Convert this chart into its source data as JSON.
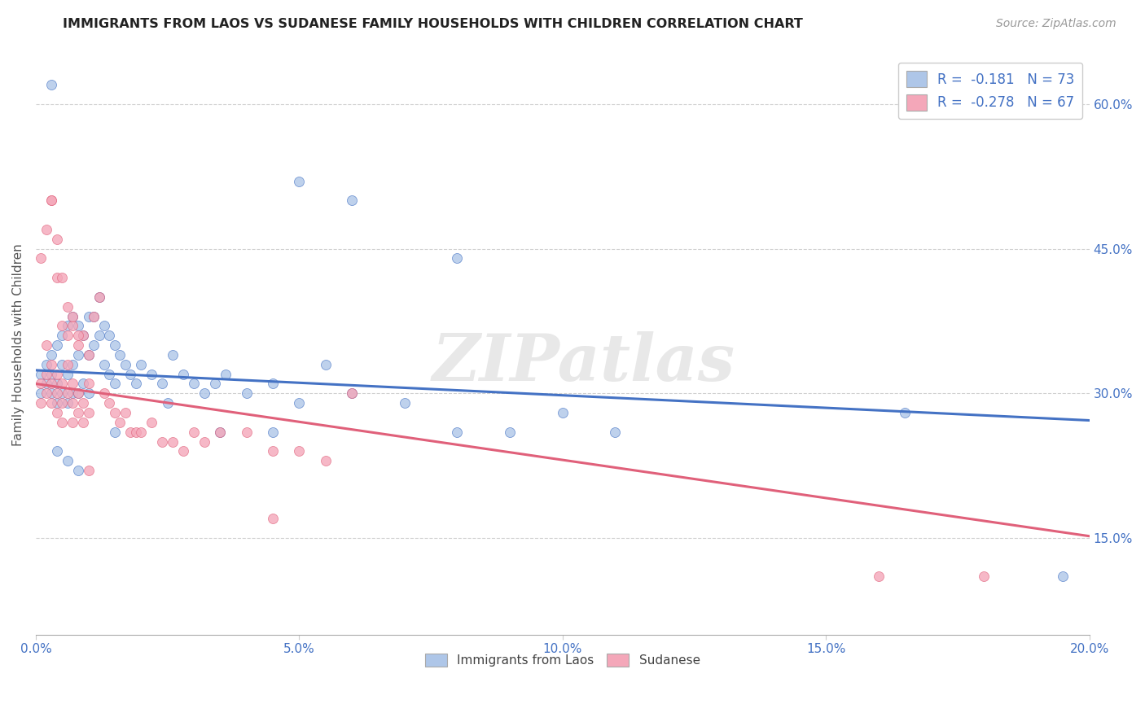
{
  "title": "IMMIGRANTS FROM LAOS VS SUDANESE FAMILY HOUSEHOLDS WITH CHILDREN CORRELATION CHART",
  "source": "Source: ZipAtlas.com",
  "ylabel": "Family Households with Children",
  "legend_label1": "Immigrants from Laos",
  "legend_label2": "Sudanese",
  "legend_r1": "R =  -0.181",
  "legend_n1": "N = 73",
  "legend_r2": "R =  -0.278",
  "legend_n2": "N = 67",
  "xlim": [
    0.0,
    0.2
  ],
  "ylim": [
    0.05,
    0.65
  ],
  "xticks": [
    0.0,
    0.05,
    0.1,
    0.15,
    0.2
  ],
  "yticks": [
    0.15,
    0.3,
    0.45,
    0.6
  ],
  "xtick_labels": [
    "0.0%",
    "5.0%",
    "10.0%",
    "15.0%",
    "20.0%"
  ],
  "ytick_labels": [
    "15.0%",
    "30.0%",
    "45.0%",
    "60.0%"
  ],
  "color_blue": "#aec6e8",
  "color_pink": "#f4a7b9",
  "line_blue": "#4472c4",
  "line_pink": "#e0607a",
  "watermark": "ZIPatlas",
  "blue_line": [
    [
      0.0,
      0.324
    ],
    [
      0.2,
      0.272
    ]
  ],
  "pink_line": [
    [
      0.0,
      0.31
    ],
    [
      0.2,
      0.152
    ]
  ],
  "blue_x": [
    0.001,
    0.001,
    0.002,
    0.002,
    0.003,
    0.003,
    0.003,
    0.004,
    0.004,
    0.004,
    0.005,
    0.005,
    0.005,
    0.006,
    0.006,
    0.006,
    0.007,
    0.007,
    0.007,
    0.008,
    0.008,
    0.008,
    0.009,
    0.009,
    0.01,
    0.01,
    0.01,
    0.011,
    0.011,
    0.012,
    0.012,
    0.013,
    0.013,
    0.014,
    0.014,
    0.015,
    0.015,
    0.016,
    0.017,
    0.018,
    0.019,
    0.02,
    0.022,
    0.024,
    0.026,
    0.028,
    0.03,
    0.032,
    0.034,
    0.036,
    0.04,
    0.045,
    0.05,
    0.055,
    0.06,
    0.07,
    0.08,
    0.09,
    0.1,
    0.11,
    0.003,
    0.05,
    0.08,
    0.06,
    0.165,
    0.195,
    0.035,
    0.045,
    0.025,
    0.015,
    0.008,
    0.006,
    0.004
  ],
  "blue_y": [
    0.32,
    0.3,
    0.33,
    0.31,
    0.34,
    0.32,
    0.3,
    0.35,
    0.31,
    0.29,
    0.36,
    0.33,
    0.3,
    0.37,
    0.32,
    0.29,
    0.38,
    0.33,
    0.3,
    0.37,
    0.34,
    0.3,
    0.36,
    0.31,
    0.38,
    0.34,
    0.3,
    0.38,
    0.35,
    0.4,
    0.36,
    0.37,
    0.33,
    0.36,
    0.32,
    0.35,
    0.31,
    0.34,
    0.33,
    0.32,
    0.31,
    0.33,
    0.32,
    0.31,
    0.34,
    0.32,
    0.31,
    0.3,
    0.31,
    0.32,
    0.3,
    0.31,
    0.29,
    0.33,
    0.3,
    0.29,
    0.26,
    0.26,
    0.28,
    0.26,
    0.62,
    0.52,
    0.44,
    0.5,
    0.28,
    0.11,
    0.26,
    0.26,
    0.29,
    0.26,
    0.22,
    0.23,
    0.24
  ],
  "pink_x": [
    0.001,
    0.001,
    0.002,
    0.002,
    0.003,
    0.003,
    0.003,
    0.004,
    0.004,
    0.004,
    0.005,
    0.005,
    0.005,
    0.006,
    0.006,
    0.007,
    0.007,
    0.007,
    0.008,
    0.008,
    0.009,
    0.009,
    0.01,
    0.01,
    0.011,
    0.012,
    0.013,
    0.014,
    0.015,
    0.016,
    0.017,
    0.018,
    0.019,
    0.02,
    0.022,
    0.024,
    0.026,
    0.028,
    0.03,
    0.032,
    0.035,
    0.04,
    0.045,
    0.05,
    0.055,
    0.06,
    0.002,
    0.003,
    0.004,
    0.005,
    0.006,
    0.007,
    0.008,
    0.009,
    0.01,
    0.001,
    0.002,
    0.003,
    0.004,
    0.005,
    0.006,
    0.007,
    0.008,
    0.045,
    0.16,
    0.18,
    0.01
  ],
  "pink_y": [
    0.31,
    0.29,
    0.32,
    0.3,
    0.33,
    0.31,
    0.29,
    0.32,
    0.3,
    0.28,
    0.31,
    0.29,
    0.27,
    0.33,
    0.3,
    0.31,
    0.29,
    0.27,
    0.3,
    0.28,
    0.29,
    0.27,
    0.31,
    0.28,
    0.38,
    0.4,
    0.3,
    0.29,
    0.28,
    0.27,
    0.28,
    0.26,
    0.26,
    0.26,
    0.27,
    0.25,
    0.25,
    0.24,
    0.26,
    0.25,
    0.26,
    0.26,
    0.24,
    0.24,
    0.23,
    0.3,
    0.35,
    0.5,
    0.42,
    0.37,
    0.36,
    0.37,
    0.35,
    0.36,
    0.34,
    0.44,
    0.47,
    0.5,
    0.46,
    0.42,
    0.39,
    0.38,
    0.36,
    0.17,
    0.11,
    0.11,
    0.22
  ]
}
